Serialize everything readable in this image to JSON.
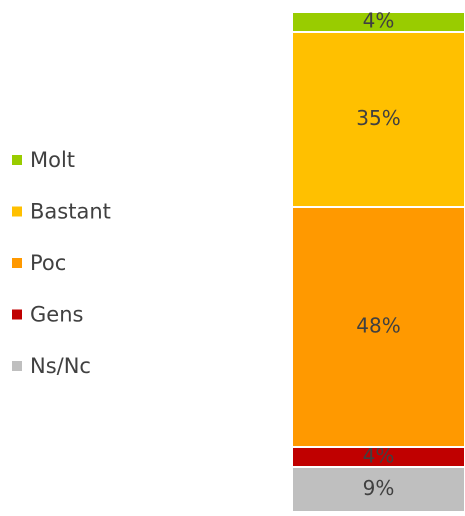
{
  "chart_data": {
    "type": "stacked_bar",
    "series": [
      {
        "name": "Molt",
        "color": "#99cc00",
        "values": [
          4
        ],
        "value_labels": [
          "4%"
        ]
      },
      {
        "name": "Bastant",
        "color": "#ffc000",
        "values": [
          35
        ],
        "value_labels": [
          "35%"
        ]
      },
      {
        "name": "Poc",
        "color": "#ff9900",
        "values": [
          48
        ],
        "value_labels": [
          "48%"
        ]
      },
      {
        "name": "Gens",
        "color": "#c00000",
        "values": [
          4
        ],
        "value_labels": [
          "4%"
        ]
      },
      {
        "name": "Ns/Nc",
        "color": "#bfbfbf",
        "values": [
          9
        ],
        "value_labels": [
          "9%"
        ]
      }
    ],
    "ylim": [
      0,
      100
    ],
    "legend": "left"
  }
}
